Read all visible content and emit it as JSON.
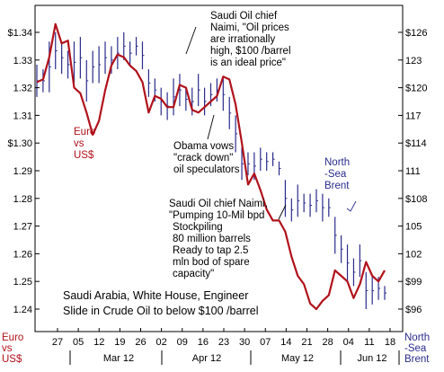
{
  "chart_data": {
    "type": "line",
    "left_axis": {
      "label_lines": [
        "Euro",
        "vs",
        "US$"
      ],
      "ticks": [
        "$1.34",
        "1.33",
        "1.32",
        "1.31",
        "$1.30",
        "1.29",
        "1.28",
        "1.27",
        "1.26",
        "1.25",
        "1.24"
      ],
      "tick_values": [
        1.34,
        1.33,
        1.32,
        1.31,
        1.3,
        1.29,
        1.28,
        1.27,
        1.26,
        1.25,
        1.24
      ],
      "range": [
        1.235,
        1.345
      ]
    },
    "right_axis": {
      "label_lines": [
        "North",
        "-Sea",
        "Brent"
      ],
      "ticks": [
        "$126",
        "123",
        "$120",
        "117",
        "$114",
        "111",
        "$108",
        "105",
        "102",
        "$99",
        "$96"
      ],
      "tick_values": [
        126,
        123,
        120,
        117,
        114,
        111,
        108,
        105,
        102,
        99,
        96
      ],
      "range": [
        95.5,
        126.5
      ]
    },
    "x_day_ticks": [
      "27",
      "05",
      "12",
      "19",
      "26",
      "02",
      "09",
      "16",
      "23",
      "30",
      "07",
      "14",
      "21",
      "28",
      "04",
      "11",
      "18"
    ],
    "x_month_labels": [
      "Mar 12",
      "Apr 12",
      "May 12",
      "Jun 12"
    ],
    "series": [
      {
        "name": "Euro vs US$",
        "axis": "left",
        "color": "#b0121b",
        "style": "line",
        "values": [
          1.322,
          1.323,
          1.331,
          1.343,
          1.336,
          1.337,
          1.32,
          1.318,
          1.311,
          1.303,
          1.308,
          1.319,
          1.328,
          1.332,
          1.331,
          1.328,
          1.326,
          1.322,
          1.311,
          1.317,
          1.316,
          1.313,
          1.313,
          1.321,
          1.32,
          1.312,
          1.311,
          1.313,
          1.315,
          1.317,
          1.324,
          1.323,
          1.314,
          1.3,
          1.285,
          1.289,
          1.283,
          1.276,
          1.272,
          1.272,
          1.268,
          1.259,
          1.252,
          1.249,
          1.242,
          1.24,
          1.243,
          1.245,
          1.254,
          1.252,
          1.25,
          1.244,
          1.249,
          1.257,
          1.252,
          1.25,
          1.254
        ]
      },
      {
        "name": "North-Sea Brent",
        "axis": "right",
        "color": "#2b2b8c",
        "style": "high-low bars",
        "bars": [
          [
            119.0,
            122.5
          ],
          [
            119.5,
            122.0
          ],
          [
            119.5,
            125.0
          ],
          [
            122.0,
            126.0
          ],
          [
            121.5,
            125.0
          ],
          [
            121.0,
            124.0
          ],
          [
            120.5,
            125.0
          ],
          [
            121.0,
            125.5
          ],
          [
            118.5,
            123.0
          ],
          [
            120.5,
            124.0
          ],
          [
            120.5,
            124.5
          ],
          [
            121.5,
            125.0
          ],
          [
            121.5,
            124.5
          ],
          [
            122.0,
            125.5
          ],
          [
            123.0,
            126.0
          ],
          [
            122.5,
            125.0
          ],
          [
            123.5,
            125.5
          ],
          [
            122.0,
            125.0
          ],
          [
            119.0,
            122.0
          ],
          [
            118.5,
            121.0
          ],
          [
            117.0,
            120.0
          ],
          [
            116.5,
            119.5
          ],
          [
            117.0,
            121.0
          ],
          [
            118.0,
            121.5
          ],
          [
            117.5,
            120.0
          ],
          [
            117.0,
            120.0
          ],
          [
            118.0,
            121.5
          ],
          [
            117.0,
            120.0
          ],
          [
            118.0,
            120.5
          ],
          [
            118.5,
            121.0
          ],
          [
            117.5,
            121.0
          ],
          [
            115.5,
            119.0
          ],
          [
            113.0,
            117.0
          ],
          [
            110.0,
            113.5
          ],
          [
            110.5,
            113.0
          ],
          [
            110.0,
            113.0
          ],
          [
            111.0,
            113.5
          ],
          [
            111.0,
            113.0
          ],
          [
            111.5,
            113.0
          ],
          [
            110.5,
            112.0
          ],
          [
            106.0,
            110.0
          ],
          [
            105.5,
            108.0
          ],
          [
            106.0,
            109.5
          ],
          [
            106.5,
            108.5
          ],
          [
            106.0,
            108.5
          ],
          [
            106.5,
            109.0
          ],
          [
            105.5,
            108.5
          ],
          [
            106.0,
            108.0
          ],
          [
            102.0,
            106.0
          ],
          [
            101.0,
            104.0
          ],
          [
            99.0,
            103.0
          ],
          [
            98.5,
            101.5
          ],
          [
            99.5,
            103.0
          ],
          [
            96.0,
            100.0
          ],
          [
            96.5,
            99.5
          ],
          [
            97.0,
            99.5
          ],
          [
            97.0,
            98.5
          ]
        ]
      }
    ],
    "annotations": [
      [
        "Saudi Oil chief",
        "Naimi, \"Oil prices",
        "are irrationally",
        "high, $100 /barrel",
        "is an ideal price\""
      ],
      [
        "Obama vows",
        "\"crack down\"",
        "oil speculators"
      ],
      [
        "Saudi Oil chief Naimi,",
        "\"Pumping 10-Mil bpd",
        "Stockpiling",
        "80 million barrels",
        "Ready to tap 2.5",
        "mln bod of spare",
        "capacity\""
      ],
      [
        "Saudi Arabia, White House, Engineer",
        "Slide in Crude Oil to below $100 /barrel"
      ]
    ],
    "grid": false
  }
}
